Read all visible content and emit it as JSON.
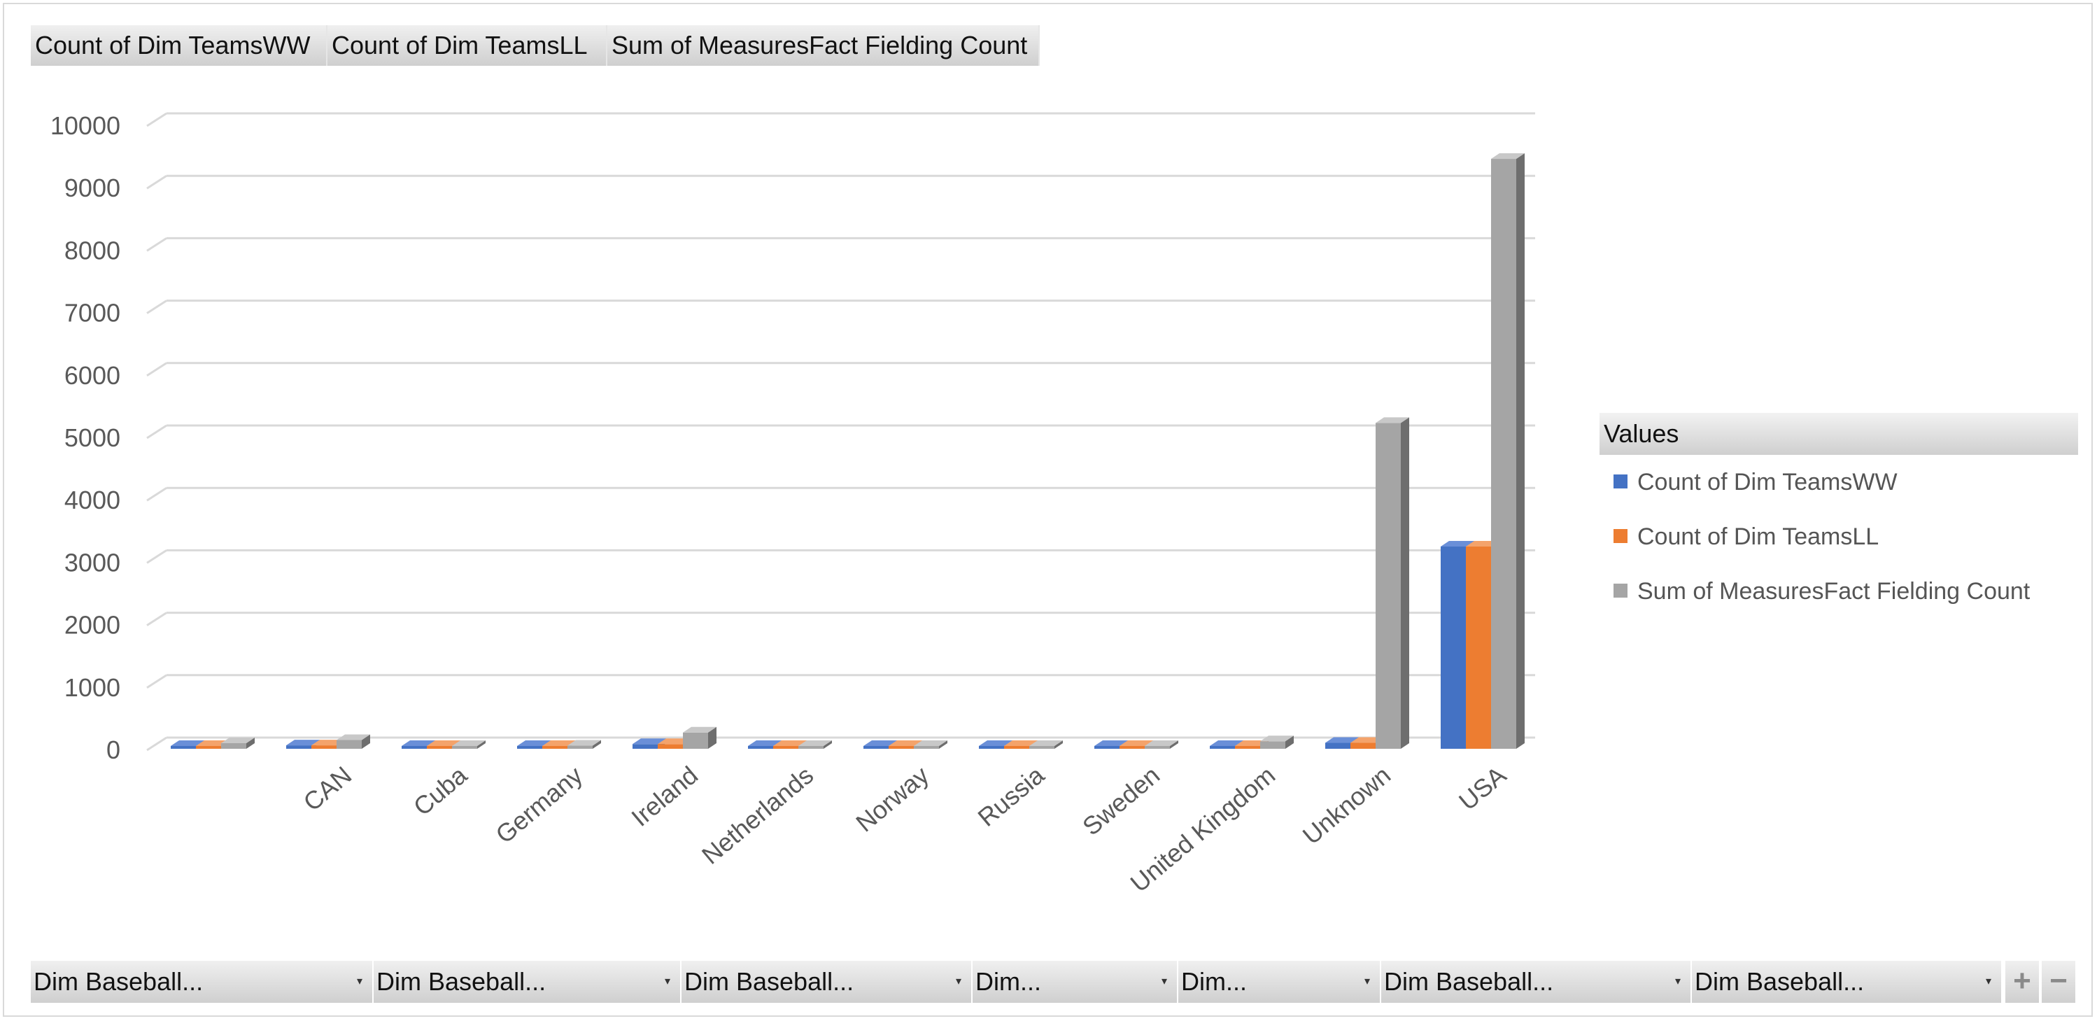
{
  "top_fields": [
    "Count of Dim TeamsWW",
    "Count of Dim TeamsLL",
    "Sum of MeasuresFact Fielding Count"
  ],
  "legend": {
    "title": "Values",
    "items": [
      "Count of Dim TeamsWW",
      "Count of Dim TeamsLL",
      "Sum of MeasuresFact Fielding Count"
    ]
  },
  "bottom_fields": [
    "Dim Baseball...",
    "Dim Baseball...",
    "Dim Baseball...",
    "Dim...",
    "Dim...",
    "Dim Baseball...",
    "Dim Baseball..."
  ],
  "bottom_controls": {
    "plus": "+",
    "minus": "−"
  },
  "colors": {
    "series1": "#4472c4",
    "series2": "#ed7d31",
    "series3": "#a5a5a5",
    "grid": "#d9d9d9",
    "tick_text": "#595959"
  },
  "chart_data": {
    "type": "bar",
    "subtype": "3d-clustered-column",
    "title": "",
    "xlabel": "",
    "ylabel": "",
    "ylim": [
      0,
      10000
    ],
    "yticks": [
      0,
      1000,
      2000,
      3000,
      4000,
      5000,
      6000,
      7000,
      8000,
      9000,
      10000
    ],
    "grid": true,
    "legend_position": "right",
    "categories": [
      "",
      "CAN",
      "Cuba",
      "Germany",
      "Ireland",
      "Netherlands",
      "Norway",
      "Russia",
      "Sweden",
      "United Kingdom",
      "Unknown",
      "USA"
    ],
    "series": [
      {
        "name": "Count of Dim TeamsWW",
        "values": [
          45,
          55,
          5,
          25,
          75,
          5,
          5,
          5,
          5,
          40,
          95,
          3240
        ]
      },
      {
        "name": "Count of Dim TeamsLL",
        "values": [
          45,
          55,
          5,
          25,
          75,
          5,
          5,
          5,
          5,
          40,
          95,
          3240
        ]
      },
      {
        "name": "Sum of MeasuresFact Fielding Count",
        "values": [
          90,
          140,
          10,
          50,
          260,
          10,
          15,
          10,
          10,
          120,
          5220,
          9450
        ]
      }
    ]
  }
}
